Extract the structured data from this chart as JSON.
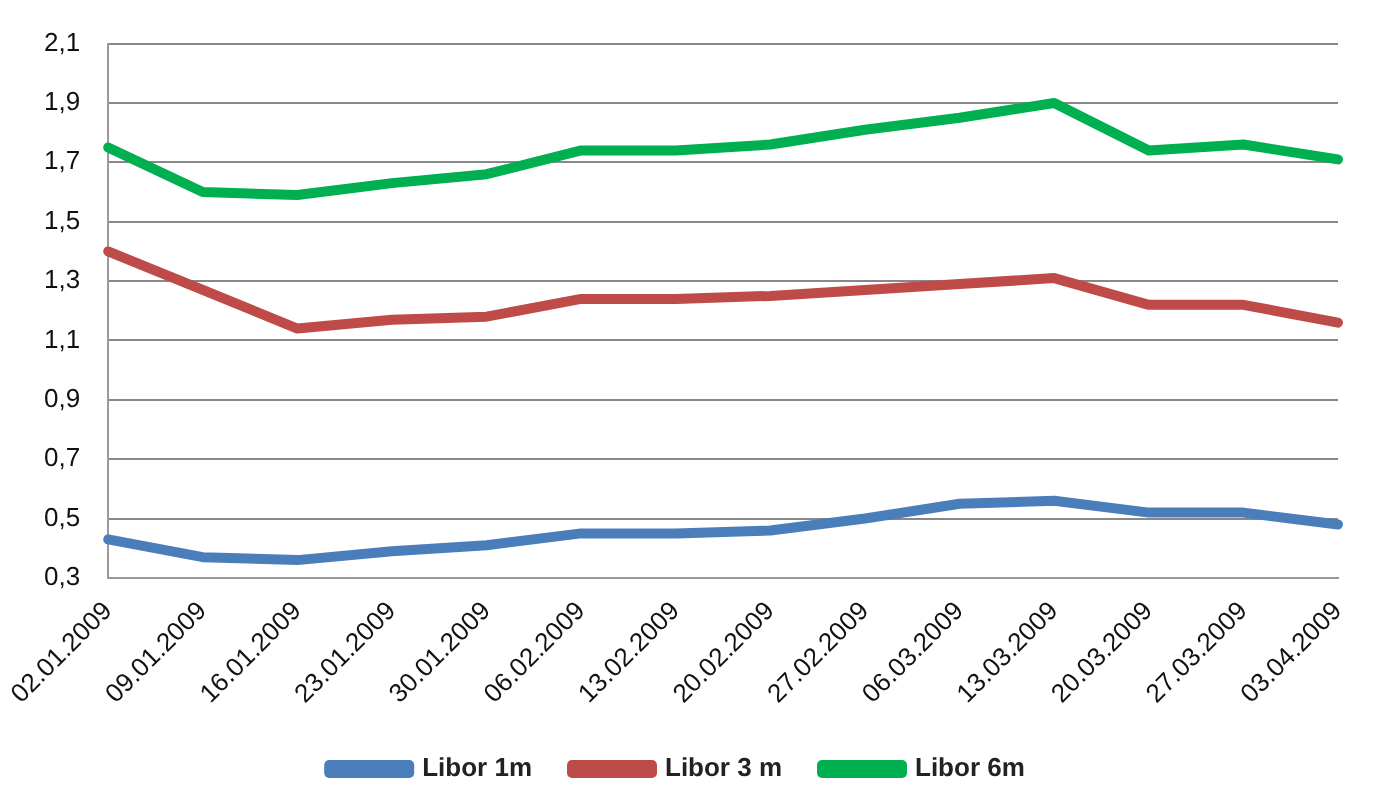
{
  "chart_data": {
    "type": "line",
    "categories": [
      "02.01.2009",
      "09.01.2009",
      "16.01.2009",
      "23.01.2009",
      "30.01.2009",
      "06.02.2009",
      "13.02.2009",
      "20.02.2009",
      "27.02.2009",
      "06.03.2009",
      "13.03.2009",
      "20.03.2009",
      "27.03.2009",
      "03.04.2009"
    ],
    "series": [
      {
        "name": "Libor 1m",
        "color": "#4a7ebb",
        "values": [
          0.43,
          0.37,
          0.36,
          0.39,
          0.41,
          0.45,
          0.45,
          0.46,
          0.5,
          0.55,
          0.56,
          0.52,
          0.52,
          0.48
        ]
      },
      {
        "name": "Libor 3 m",
        "color": "#be4b48",
        "values": [
          1.4,
          1.27,
          1.14,
          1.17,
          1.18,
          1.24,
          1.24,
          1.25,
          1.27,
          1.29,
          1.31,
          1.22,
          1.22,
          1.16
        ]
      },
      {
        "name": "Libor 6m",
        "color": "#00b050",
        "values": [
          1.75,
          1.6,
          1.59,
          1.63,
          1.66,
          1.74,
          1.74,
          1.76,
          1.81,
          1.85,
          1.9,
          1.74,
          1.76,
          1.71
        ]
      }
    ],
    "ylim": [
      0.3,
      2.1
    ],
    "yticks": [
      {
        "value": 0.3,
        "label": "0,3"
      },
      {
        "value": 0.5,
        "label": "0,5"
      },
      {
        "value": 0.7,
        "label": "0,7"
      },
      {
        "value": 0.9,
        "label": "0,9"
      },
      {
        "value": 1.1,
        "label": "1,1"
      },
      {
        "value": 1.3,
        "label": "1,3"
      },
      {
        "value": 1.5,
        "label": "1,5"
      },
      {
        "value": 1.7,
        "label": "1,7"
      },
      {
        "value": 1.9,
        "label": "1,9"
      },
      {
        "value": 2.1,
        "label": "2,1"
      }
    ],
    "grid": "y",
    "legend": "bottom",
    "marker": "none",
    "line_style": "solid"
  }
}
